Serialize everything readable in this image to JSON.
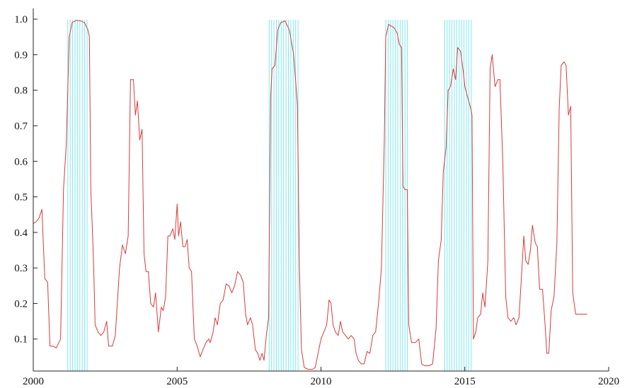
{
  "chart_data": {
    "type": "line",
    "title": "",
    "xlabel": "",
    "ylabel": "",
    "xlim": [
      2000,
      2020
    ],
    "ylim": [
      0.01,
      1.03
    ],
    "x_ticks": [
      2000,
      2005,
      2010,
      2015,
      2020
    ],
    "x_tick_labels": [
      "2000",
      "2005",
      "2010",
      "2015",
      "2020"
    ],
    "y_ticks": [
      0.1,
      0.2,
      0.3,
      0.4,
      0.5,
      0.6,
      0.7,
      0.8,
      0.9,
      1.0
    ],
    "y_tick_labels": [
      "0.1",
      "0.2",
      "0.3",
      "0.4",
      "0.5",
      "0.6",
      "0.7",
      "0.8",
      "0.9",
      "1.0"
    ],
    "grid": false,
    "colors": {
      "series": "#d93a3a",
      "bands": "#7fe8ec",
      "axis": "#222222"
    },
    "shaded_periods": [
      {
        "start": 2001.2,
        "end": 2001.95
      },
      {
        "start": 2008.2,
        "end": 2009.25
      },
      {
        "start": 2012.25,
        "end": 2013.05
      },
      {
        "start": 2014.3,
        "end": 2015.25
      }
    ],
    "series": [
      {
        "points": [
          [
            2000.0,
            0.425
          ],
          [
            2000.1,
            0.43
          ],
          [
            2000.2,
            0.44
          ],
          [
            2000.3,
            0.465
          ],
          [
            2000.4,
            0.27
          ],
          [
            2000.5,
            0.26
          ],
          [
            2000.58,
            0.08
          ],
          [
            2000.7,
            0.08
          ],
          [
            2000.8,
            0.075
          ],
          [
            2000.95,
            0.1
          ],
          [
            2001.05,
            0.52
          ],
          [
            2001.15,
            0.65
          ],
          [
            2001.25,
            0.95
          ],
          [
            2001.35,
            0.99
          ],
          [
            2001.5,
            0.997
          ],
          [
            2001.65,
            0.995
          ],
          [
            2001.78,
            0.99
          ],
          [
            2001.9,
            0.97
          ],
          [
            2001.95,
            0.95
          ],
          [
            2002.0,
            0.52
          ],
          [
            2002.05,
            0.42
          ],
          [
            2002.1,
            0.3
          ],
          [
            2002.15,
            0.14
          ],
          [
            2002.25,
            0.12
          ],
          [
            2002.35,
            0.11
          ],
          [
            2002.45,
            0.12
          ],
          [
            2002.55,
            0.15
          ],
          [
            2002.62,
            0.08
          ],
          [
            2002.75,
            0.08
          ],
          [
            2002.85,
            0.11
          ],
          [
            2003.0,
            0.3
          ],
          [
            2003.1,
            0.365
          ],
          [
            2003.2,
            0.34
          ],
          [
            2003.3,
            0.39
          ],
          [
            2003.38,
            0.83
          ],
          [
            2003.48,
            0.83
          ],
          [
            2003.55,
            0.73
          ],
          [
            2003.62,
            0.77
          ],
          [
            2003.7,
            0.66
          ],
          [
            2003.78,
            0.69
          ],
          [
            2003.85,
            0.34
          ],
          [
            2003.92,
            0.29
          ],
          [
            2004.0,
            0.29
          ],
          [
            2004.08,
            0.2
          ],
          [
            2004.18,
            0.19
          ],
          [
            2004.25,
            0.23
          ],
          [
            2004.35,
            0.12
          ],
          [
            2004.45,
            0.19
          ],
          [
            2004.52,
            0.18
          ],
          [
            2004.6,
            0.22
          ],
          [
            2004.68,
            0.39
          ],
          [
            2004.75,
            0.39
          ],
          [
            2004.85,
            0.41
          ],
          [
            2004.92,
            0.38
          ],
          [
            2005.0,
            0.48
          ],
          [
            2005.05,
            0.39
          ],
          [
            2005.12,
            0.43
          ],
          [
            2005.2,
            0.36
          ],
          [
            2005.28,
            0.36
          ],
          [
            2005.35,
            0.38
          ],
          [
            2005.42,
            0.3
          ],
          [
            2005.5,
            0.29
          ],
          [
            2005.6,
            0.1
          ],
          [
            2005.7,
            0.08
          ],
          [
            2005.8,
            0.05
          ],
          [
            2005.9,
            0.07
          ],
          [
            2006.0,
            0.09
          ],
          [
            2006.1,
            0.1
          ],
          [
            2006.15,
            0.09
          ],
          [
            2006.25,
            0.12
          ],
          [
            2006.32,
            0.16
          ],
          [
            2006.4,
            0.14
          ],
          [
            2006.5,
            0.2
          ],
          [
            2006.6,
            0.21
          ],
          [
            2006.7,
            0.255
          ],
          [
            2006.8,
            0.25
          ],
          [
            2006.9,
            0.23
          ],
          [
            2007.0,
            0.25
          ],
          [
            2007.1,
            0.29
          ],
          [
            2007.2,
            0.28
          ],
          [
            2007.3,
            0.26
          ],
          [
            2007.38,
            0.17
          ],
          [
            2007.45,
            0.14
          ],
          [
            2007.55,
            0.16
          ],
          [
            2007.62,
            0.14
          ],
          [
            2007.72,
            0.07
          ],
          [
            2007.8,
            0.06
          ],
          [
            2007.88,
            0.04
          ],
          [
            2007.95,
            0.06
          ],
          [
            2008.02,
            0.04
          ],
          [
            2008.1,
            0.11
          ],
          [
            2008.18,
            0.16
          ],
          [
            2008.25,
            0.78
          ],
          [
            2008.3,
            0.86
          ],
          [
            2008.4,
            0.87
          ],
          [
            2008.5,
            0.97
          ],
          [
            2008.6,
            0.99
          ],
          [
            2008.75,
            0.995
          ],
          [
            2008.9,
            0.97
          ],
          [
            2009.05,
            0.9
          ],
          [
            2009.18,
            0.76
          ],
          [
            2009.25,
            0.3
          ],
          [
            2009.32,
            0.07
          ],
          [
            2009.42,
            0.02
          ],
          [
            2009.55,
            0.015
          ],
          [
            2009.7,
            0.015
          ],
          [
            2009.8,
            0.02
          ],
          [
            2009.9,
            0.06
          ],
          [
            2010.0,
            0.1
          ],
          [
            2010.1,
            0.12
          ],
          [
            2010.2,
            0.14
          ],
          [
            2010.28,
            0.21
          ],
          [
            2010.35,
            0.2
          ],
          [
            2010.42,
            0.14
          ],
          [
            2010.5,
            0.12
          ],
          [
            2010.6,
            0.11
          ],
          [
            2010.68,
            0.15
          ],
          [
            2010.75,
            0.12
          ],
          [
            2010.85,
            0.11
          ],
          [
            2010.95,
            0.1
          ],
          [
            2011.05,
            0.11
          ],
          [
            2011.15,
            0.1
          ],
          [
            2011.22,
            0.06
          ],
          [
            2011.3,
            0.04
          ],
          [
            2011.4,
            0.03
          ],
          [
            2011.5,
            0.03
          ],
          [
            2011.6,
            0.065
          ],
          [
            2011.7,
            0.06
          ],
          [
            2011.8,
            0.11
          ],
          [
            2011.9,
            0.12
          ],
          [
            2012.0,
            0.2
          ],
          [
            2012.1,
            0.3
          ],
          [
            2012.2,
            0.65
          ],
          [
            2012.25,
            0.95
          ],
          [
            2012.35,
            0.985
          ],
          [
            2012.45,
            0.98
          ],
          [
            2012.55,
            0.975
          ],
          [
            2012.65,
            0.96
          ],
          [
            2012.72,
            0.93
          ],
          [
            2012.8,
            0.92
          ],
          [
            2012.85,
            0.53
          ],
          [
            2012.92,
            0.52
          ],
          [
            2013.0,
            0.52
          ],
          [
            2013.05,
            0.14
          ],
          [
            2013.15,
            0.09
          ],
          [
            2013.28,
            0.09
          ],
          [
            2013.4,
            0.1
          ],
          [
            2013.5,
            0.03
          ],
          [
            2013.6,
            0.025
          ],
          [
            2013.75,
            0.025
          ],
          [
            2013.88,
            0.03
          ],
          [
            2014.0,
            0.13
          ],
          [
            2014.08,
            0.32
          ],
          [
            2014.18,
            0.38
          ],
          [
            2014.25,
            0.57
          ],
          [
            2014.35,
            0.64
          ],
          [
            2014.42,
            0.8
          ],
          [
            2014.5,
            0.81
          ],
          [
            2014.6,
            0.86
          ],
          [
            2014.68,
            0.83
          ],
          [
            2014.75,
            0.92
          ],
          [
            2014.85,
            0.91
          ],
          [
            2014.95,
            0.85
          ],
          [
            2015.0,
            0.81
          ],
          [
            2015.1,
            0.78
          ],
          [
            2015.2,
            0.75
          ],
          [
            2015.25,
            0.73
          ],
          [
            2015.3,
            0.1
          ],
          [
            2015.38,
            0.12
          ],
          [
            2015.45,
            0.16
          ],
          [
            2015.55,
            0.17
          ],
          [
            2015.62,
            0.23
          ],
          [
            2015.7,
            0.19
          ],
          [
            2015.8,
            0.32
          ],
          [
            2015.88,
            0.86
          ],
          [
            2015.95,
            0.9
          ],
          [
            2016.05,
            0.81
          ],
          [
            2016.15,
            0.83
          ],
          [
            2016.22,
            0.83
          ],
          [
            2016.32,
            0.6
          ],
          [
            2016.42,
            0.22
          ],
          [
            2016.5,
            0.16
          ],
          [
            2016.6,
            0.15
          ],
          [
            2016.7,
            0.16
          ],
          [
            2016.78,
            0.14
          ],
          [
            2016.88,
            0.16
          ],
          [
            2016.95,
            0.25
          ],
          [
            2017.05,
            0.39
          ],
          [
            2017.12,
            0.32
          ],
          [
            2017.2,
            0.31
          ],
          [
            2017.28,
            0.35
          ],
          [
            2017.35,
            0.42
          ],
          [
            2017.45,
            0.37
          ],
          [
            2017.52,
            0.36
          ],
          [
            2017.6,
            0.24
          ],
          [
            2017.7,
            0.24
          ],
          [
            2017.78,
            0.15
          ],
          [
            2017.85,
            0.06
          ],
          [
            2017.92,
            0.06
          ],
          [
            2018.0,
            0.18
          ],
          [
            2018.1,
            0.22
          ],
          [
            2018.2,
            0.37
          ],
          [
            2018.28,
            0.75
          ],
          [
            2018.35,
            0.87
          ],
          [
            2018.45,
            0.88
          ],
          [
            2018.52,
            0.87
          ],
          [
            2018.6,
            0.73
          ],
          [
            2018.68,
            0.755
          ],
          [
            2018.75,
            0.23
          ],
          [
            2018.85,
            0.17
          ],
          [
            2018.95,
            0.17
          ],
          [
            2019.05,
            0.17
          ],
          [
            2019.15,
            0.17
          ],
          [
            2019.25,
            0.17
          ]
        ]
      }
    ]
  }
}
